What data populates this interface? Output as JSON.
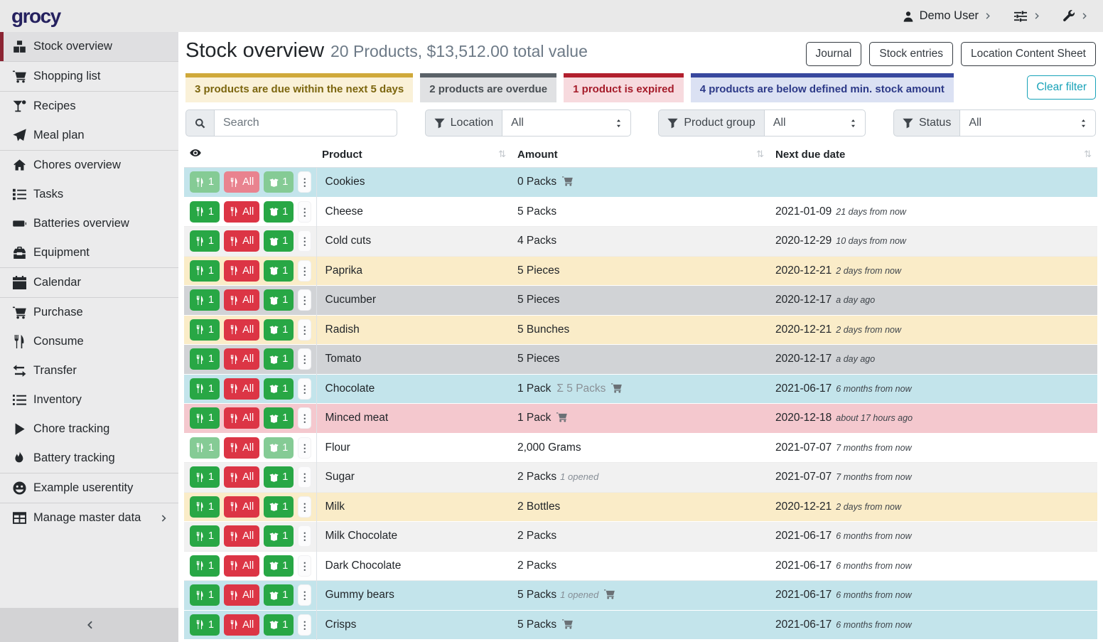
{
  "topbar": {
    "logo": "grocy",
    "user": "Demo User"
  },
  "sidebar": {
    "items": [
      {
        "label": "Stock overview",
        "icon": "boxes-icon",
        "active": true,
        "divider_after": true
      },
      {
        "label": "Shopping list",
        "icon": "shopping-cart-icon",
        "divider_after": true
      },
      {
        "label": "Recipes",
        "icon": "cocktail-icon"
      },
      {
        "label": "Meal plan",
        "icon": "paper-plane-icon",
        "divider_after": true
      },
      {
        "label": "Chores overview",
        "icon": "home-icon"
      },
      {
        "label": "Tasks",
        "icon": "tasks-icon"
      },
      {
        "label": "Batteries overview",
        "icon": "battery-icon"
      },
      {
        "label": "Equipment",
        "icon": "toolbox-icon",
        "divider_after": true
      },
      {
        "label": "Calendar",
        "icon": "calendar-icon",
        "divider_after": true
      },
      {
        "label": "Purchase",
        "icon": "shopping-cart-icon"
      },
      {
        "label": "Consume",
        "icon": "utensils-icon"
      },
      {
        "label": "Transfer",
        "icon": "exchange-icon"
      },
      {
        "label": "Inventory",
        "icon": "list-icon"
      },
      {
        "label": "Chore tracking",
        "icon": "play-icon"
      },
      {
        "label": "Battery tracking",
        "icon": "flame-icon",
        "divider_after": true
      },
      {
        "label": "Example userentity",
        "icon": "smiley-icon",
        "divider_after": true
      },
      {
        "label": "Manage master data",
        "icon": "table-icon",
        "chevron": true
      }
    ]
  },
  "header": {
    "title": "Stock overview",
    "subtitle": "20 Products, $13,512.00 total value",
    "buttons": [
      "Journal",
      "Stock entries",
      "Location Content Sheet"
    ]
  },
  "banners": [
    {
      "text": "3 products are due within the next 5 days",
      "type": "due-soon"
    },
    {
      "text": "2 products are overdue",
      "type": "overdue"
    },
    {
      "text": "1 product is expired",
      "type": "expired"
    },
    {
      "text": "4 products are below defined min. stock amount",
      "type": "below-min"
    }
  ],
  "clear_filter": "Clear filter",
  "filters": {
    "search_placeholder": "Search",
    "location_label": "Location",
    "location_value": "All",
    "product_group_label": "Product group",
    "product_group_value": "All",
    "status_label": "Status",
    "status_value": "All"
  },
  "table": {
    "columns": {
      "product": "Product",
      "amount": "Amount",
      "due": "Next due date"
    },
    "buttons": {
      "consume_one": "1",
      "consume_all": "All",
      "open_one": "1"
    },
    "rows": [
      {
        "product": "Cookies",
        "amount": "0 Packs",
        "cart": true,
        "due_date": "",
        "due_relative": "",
        "status": "below-min",
        "faded": [
          "consume_one",
          "consume_all",
          "open_one"
        ]
      },
      {
        "product": "Cheese",
        "amount": "5 Packs",
        "due_date": "2021-01-09",
        "due_relative": "21 days from now",
        "status": ""
      },
      {
        "product": "Cold cuts",
        "amount": "4 Packs",
        "due_date": "2020-12-29",
        "due_relative": "10 days from now",
        "status": "stripe"
      },
      {
        "product": "Paprika",
        "amount": "5 Pieces",
        "due_date": "2020-12-21",
        "due_relative": "2 days from now",
        "status": "due-soon"
      },
      {
        "product": "Cucumber",
        "amount": "5 Pieces",
        "due_date": "2020-12-17",
        "due_relative": "a day ago",
        "status": "overdue"
      },
      {
        "product": "Radish",
        "amount": "5 Bunches",
        "due_date": "2020-12-21",
        "due_relative": "2 days from now",
        "status": "due-soon"
      },
      {
        "product": "Tomato",
        "amount": "5 Pieces",
        "due_date": "2020-12-17",
        "due_relative": "a day ago",
        "status": "overdue"
      },
      {
        "product": "Chocolate",
        "amount": "1 Pack",
        "sum_note": "Σ 5 Packs",
        "cart": true,
        "due_date": "2021-06-17",
        "due_relative": "6 months from now",
        "status": "below-min"
      },
      {
        "product": "Minced meat",
        "amount": "1 Pack",
        "cart": true,
        "due_date": "2020-12-18",
        "due_relative": "about 17 hours ago",
        "status": "expired"
      },
      {
        "product": "Flour",
        "amount": "2,000 Grams",
        "due_date": "2021-07-07",
        "due_relative": "7 months from now",
        "status": "",
        "faded": [
          "consume_one",
          "open_one"
        ]
      },
      {
        "product": "Sugar",
        "amount": "2 Packs",
        "opened_note": "1 opened",
        "due_date": "2021-07-07",
        "due_relative": "7 months from now",
        "status": "stripe"
      },
      {
        "product": "Milk",
        "amount": "2 Bottles",
        "due_date": "2020-12-21",
        "due_relative": "2 days from now",
        "status": "due-soon"
      },
      {
        "product": "Milk Chocolate",
        "amount": "2 Packs",
        "due_date": "2021-06-17",
        "due_relative": "6 months from now",
        "status": "stripe"
      },
      {
        "product": "Dark Chocolate",
        "amount": "2 Packs",
        "due_date": "2021-06-17",
        "due_relative": "6 months from now",
        "status": ""
      },
      {
        "product": "Gummy bears",
        "amount": "5 Packs",
        "opened_note": "1 opened",
        "cart": true,
        "due_date": "2021-06-17",
        "due_relative": "6 months from now",
        "status": "below-min"
      },
      {
        "product": "Crisps",
        "amount": "5 Packs",
        "cart": true,
        "due_date": "2021-06-17",
        "due_relative": "6 months from now",
        "status": "below-min"
      }
    ]
  }
}
